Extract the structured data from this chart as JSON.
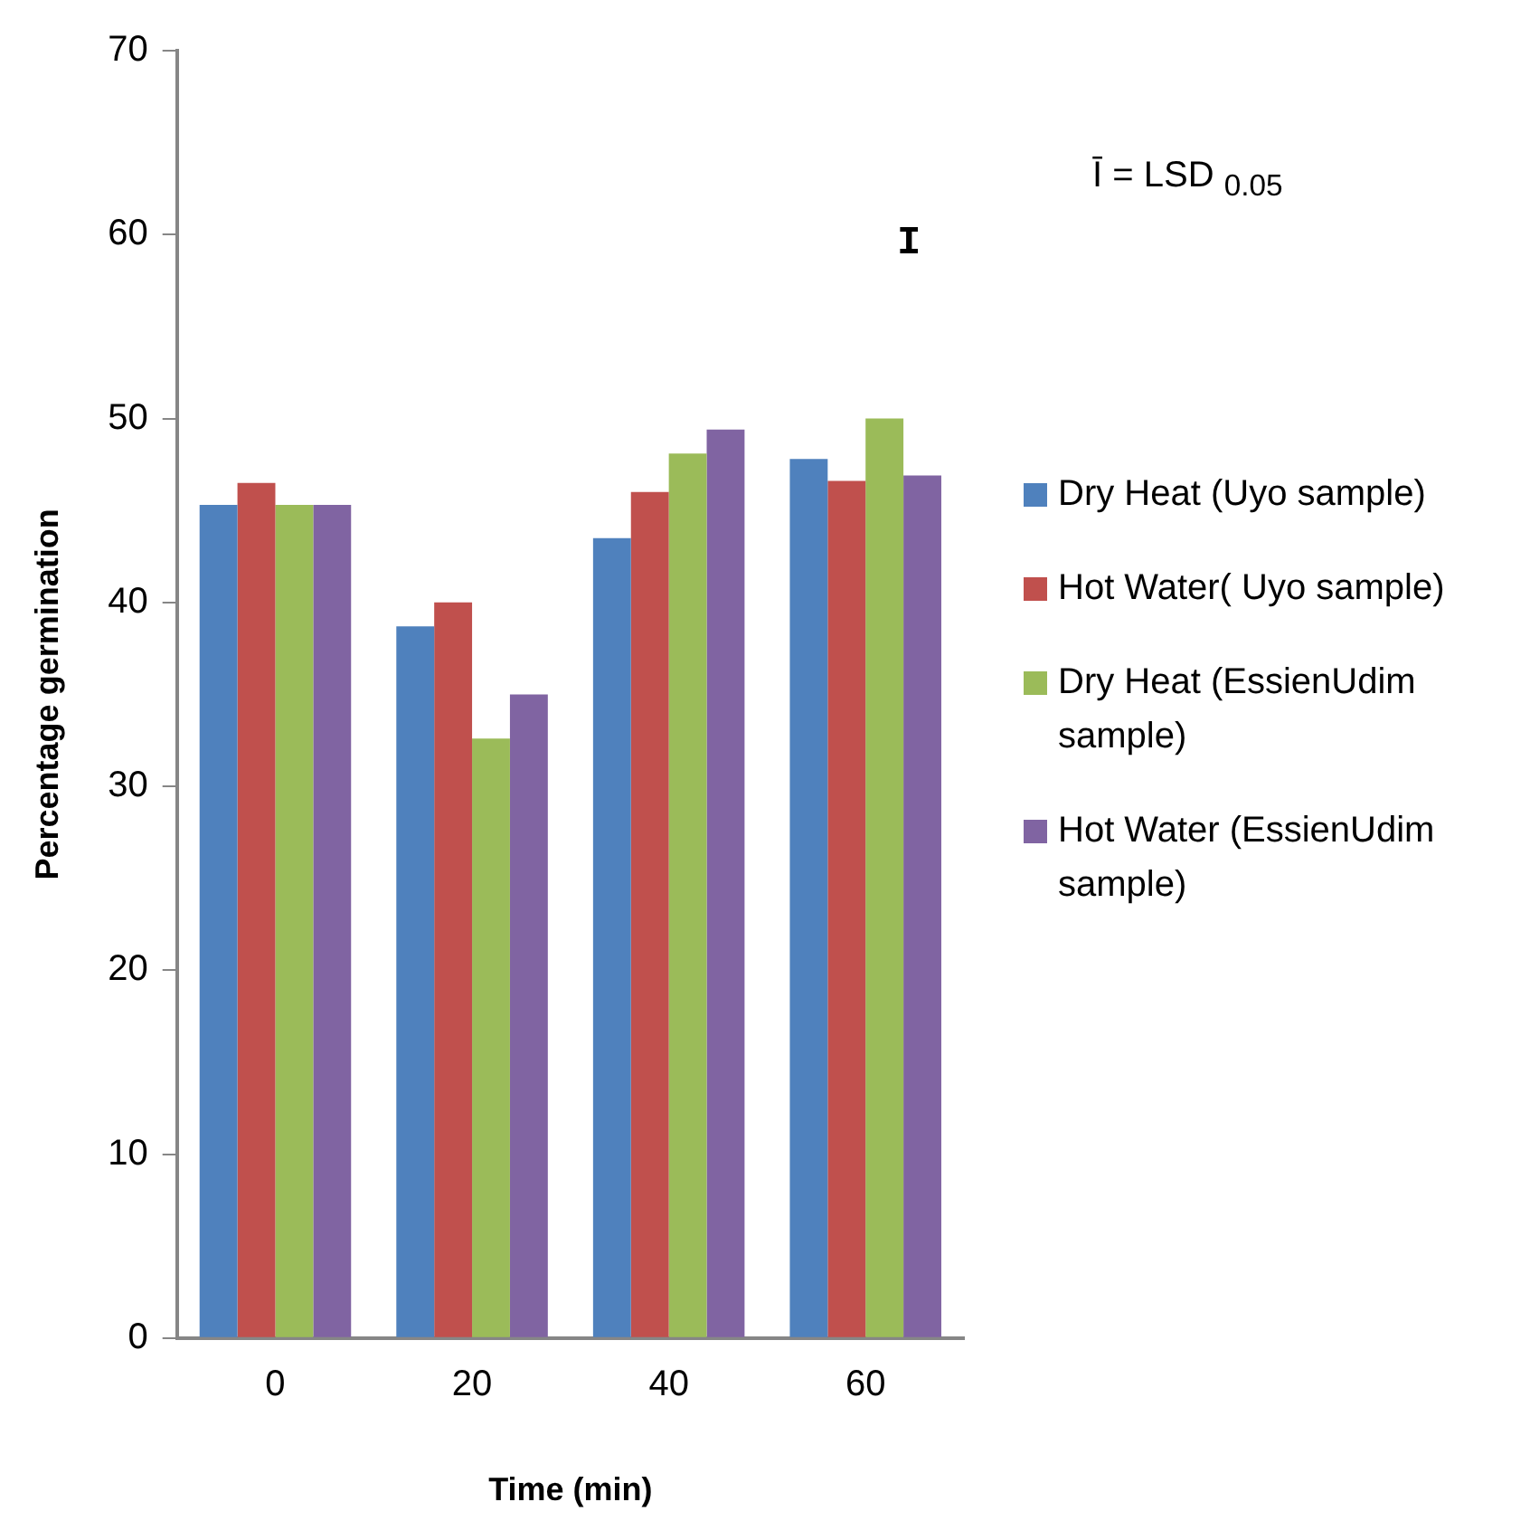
{
  "chart_data": {
    "type": "bar",
    "xlabel": "Time (min)",
    "ylabel": "Percentage germination",
    "categories": [
      "0",
      "20",
      "40",
      "60"
    ],
    "series": [
      {
        "name": "Dry Heat (Uyo sample)",
        "color": "#4f81bd",
        "values": [
          45.3,
          38.7,
          43.5,
          47.8
        ]
      },
      {
        "name": "Hot Water( Uyo sample)",
        "color": "#c0504d",
        "values": [
          46.5,
          40.0,
          46.0,
          46.6
        ]
      },
      {
        "name": "Dry Heat (EssienUdim sample)",
        "color": "#9bbb59",
        "values": [
          45.3,
          32.6,
          48.1,
          50.0
        ]
      },
      {
        "name": "Hot Water (EssienUdim sample)",
        "color": "#8064a2",
        "values": [
          45.3,
          35.0,
          49.4,
          46.9
        ]
      }
    ],
    "ylim": [
      0,
      70
    ],
    "yticks": [
      0,
      10,
      20,
      30,
      40,
      50,
      60,
      70
    ],
    "grid": false,
    "legend": "right",
    "annotations": [
      "I",
      "Ī = LSD $_{0.05}$"
    ]
  }
}
